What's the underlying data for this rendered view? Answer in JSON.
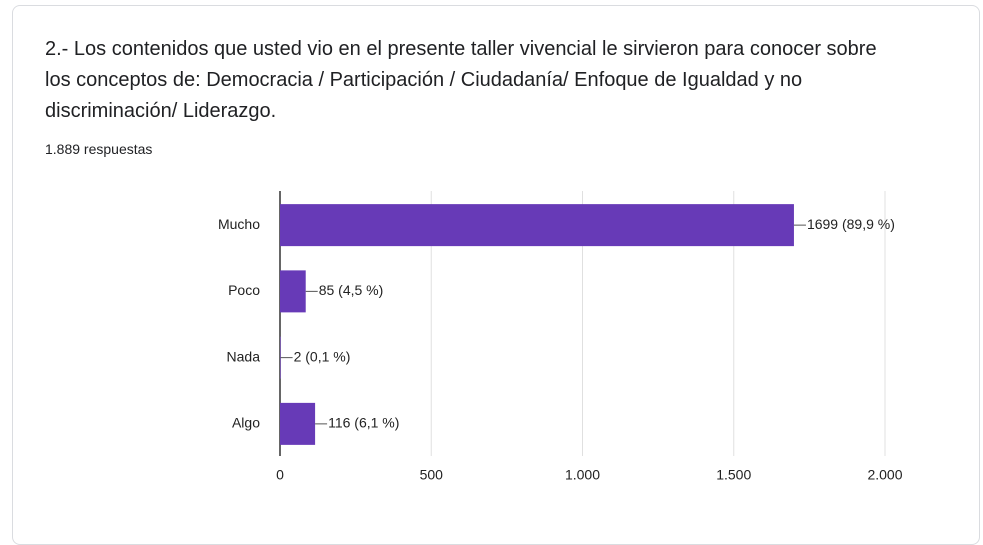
{
  "chart_data": {
    "type": "bar",
    "orientation": "horizontal",
    "title": "2.- Los contenidos que usted vio en el presente taller vivencial le sirvieron para conocer sobre los conceptos de: Democracia / Participación / Ciudadanía/ Enfoque de Igualdad y no discriminación/ Liderazgo.",
    "subtitle": "1.889 respuestas",
    "categories": [
      "Mucho",
      "Poco",
      "Nada",
      "Algo"
    ],
    "values": [
      1699,
      85,
      2,
      116
    ],
    "value_labels": [
      "1699 (89,9 %)",
      "85 (4,5 %)",
      "2 (0,1 %)",
      "116 (6,1 %)"
    ],
    "color": "#673ab7",
    "xlim": [
      0,
      2000
    ],
    "xticks": [
      0,
      500,
      {
        "value": 1000,
        "label": "1.000"
      },
      {
        "value": 1500,
        "label": "1.500"
      },
      {
        "value": 2000,
        "label": "2.000"
      }
    ],
    "grid": true
  }
}
